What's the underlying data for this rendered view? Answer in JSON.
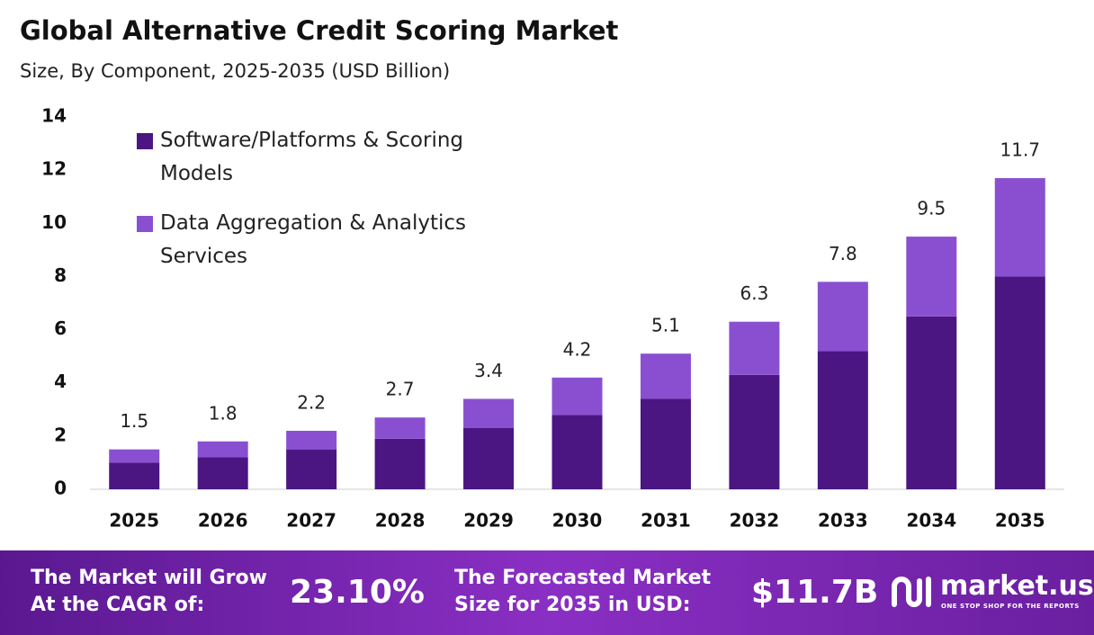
{
  "chart_data": {
    "type": "stacked_bar",
    "title": "Global Alternative Credit Scoring Market",
    "subtitle": "Size, By Component, 2025-2035 (USD Billion)",
    "categories": [
      "2025",
      "2026",
      "2027",
      "2028",
      "2029",
      "2030",
      "2031",
      "2032",
      "2033",
      "2034",
      "2035"
    ],
    "series": [
      {
        "name": "Software/Platforms & Scoring Models",
        "color": "#4b1582",
        "values": [
          1.0,
          1.2,
          1.5,
          1.9,
          2.3,
          2.8,
          3.4,
          4.3,
          5.2,
          6.5,
          8.0
        ]
      },
      {
        "name": "Data Aggregation & Analytics Services",
        "color": "#8a4fd1",
        "values": [
          0.5,
          0.6,
          0.7,
          0.8,
          1.1,
          1.4,
          1.7,
          2.0,
          2.6,
          3.0,
          3.7
        ]
      }
    ],
    "totals": [
      1.5,
      1.8,
      2.2,
      2.7,
      3.4,
      4.2,
      5.1,
      6.3,
      7.8,
      9.5,
      11.7
    ],
    "ylim": [
      0,
      14
    ],
    "yticks": [
      0,
      2,
      4,
      6,
      8,
      10,
      12,
      14
    ],
    "grid": false,
    "legend": "top-left"
  },
  "footer": {
    "cagr_label": [
      "The Market will Grow",
      "At the CAGR of:"
    ],
    "cagr_value": "23.10%",
    "forecast_label": [
      "The Forecasted Market",
      "Size for 2035 in USD:"
    ],
    "forecast_value": "$11.7B",
    "brand": "market.us",
    "tagline": "ONE STOP SHOP FOR THE REPORTS"
  }
}
